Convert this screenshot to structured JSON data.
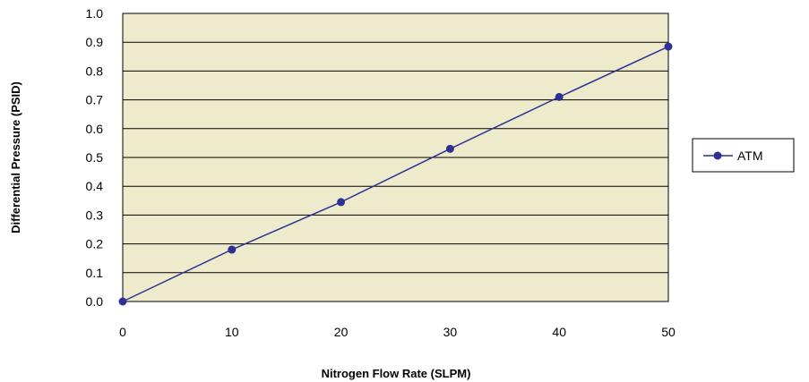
{
  "chart_data": {
    "type": "line",
    "xlabel": "Nitrogen Flow Rate (SLPM)",
    "ylabel": "Differential Pressure (PSID)",
    "xlim": [
      0,
      50
    ],
    "ylim": [
      0,
      1.0
    ],
    "x_ticks": [
      "0",
      "10",
      "20",
      "30",
      "40",
      "50"
    ],
    "y_ticks": [
      "0.0",
      "0.1",
      "0.2",
      "0.3",
      "0.4",
      "0.5",
      "0.6",
      "0.7",
      "0.8",
      "0.9",
      "1.0"
    ],
    "grid": "horizontal",
    "legend_position": "right",
    "series": [
      {
        "name": "ATM",
        "x": [
          0,
          10,
          20,
          30,
          40,
          50
        ],
        "values": [
          0.0,
          0.18,
          0.345,
          0.53,
          0.71,
          0.885
        ]
      }
    ]
  },
  "colors": {
    "plot_background": "#eeebcc",
    "series_line": "#2e3192",
    "grid": "#000000"
  }
}
